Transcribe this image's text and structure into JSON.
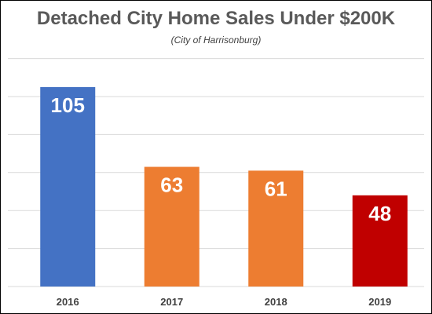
{
  "chart_data": {
    "type": "bar",
    "title": "Detached City Home Sales Under $200K",
    "subtitle": "(City of Harrisonburg)",
    "categories": [
      "2016",
      "2017",
      "2018",
      "2019"
    ],
    "values": [
      105,
      63,
      61,
      48
    ],
    "data_labels": [
      "105",
      "63",
      "61",
      "48"
    ],
    "bar_colors": [
      "#4472C4",
      "#ED7D31",
      "#ED7D31",
      "#C00000"
    ],
    "xlabel": "",
    "ylabel": "",
    "ylim": [
      0,
      120
    ],
    "y_gridline_step": 20,
    "y_tick_labels_shown": false,
    "grid": true,
    "legend": "none"
  }
}
